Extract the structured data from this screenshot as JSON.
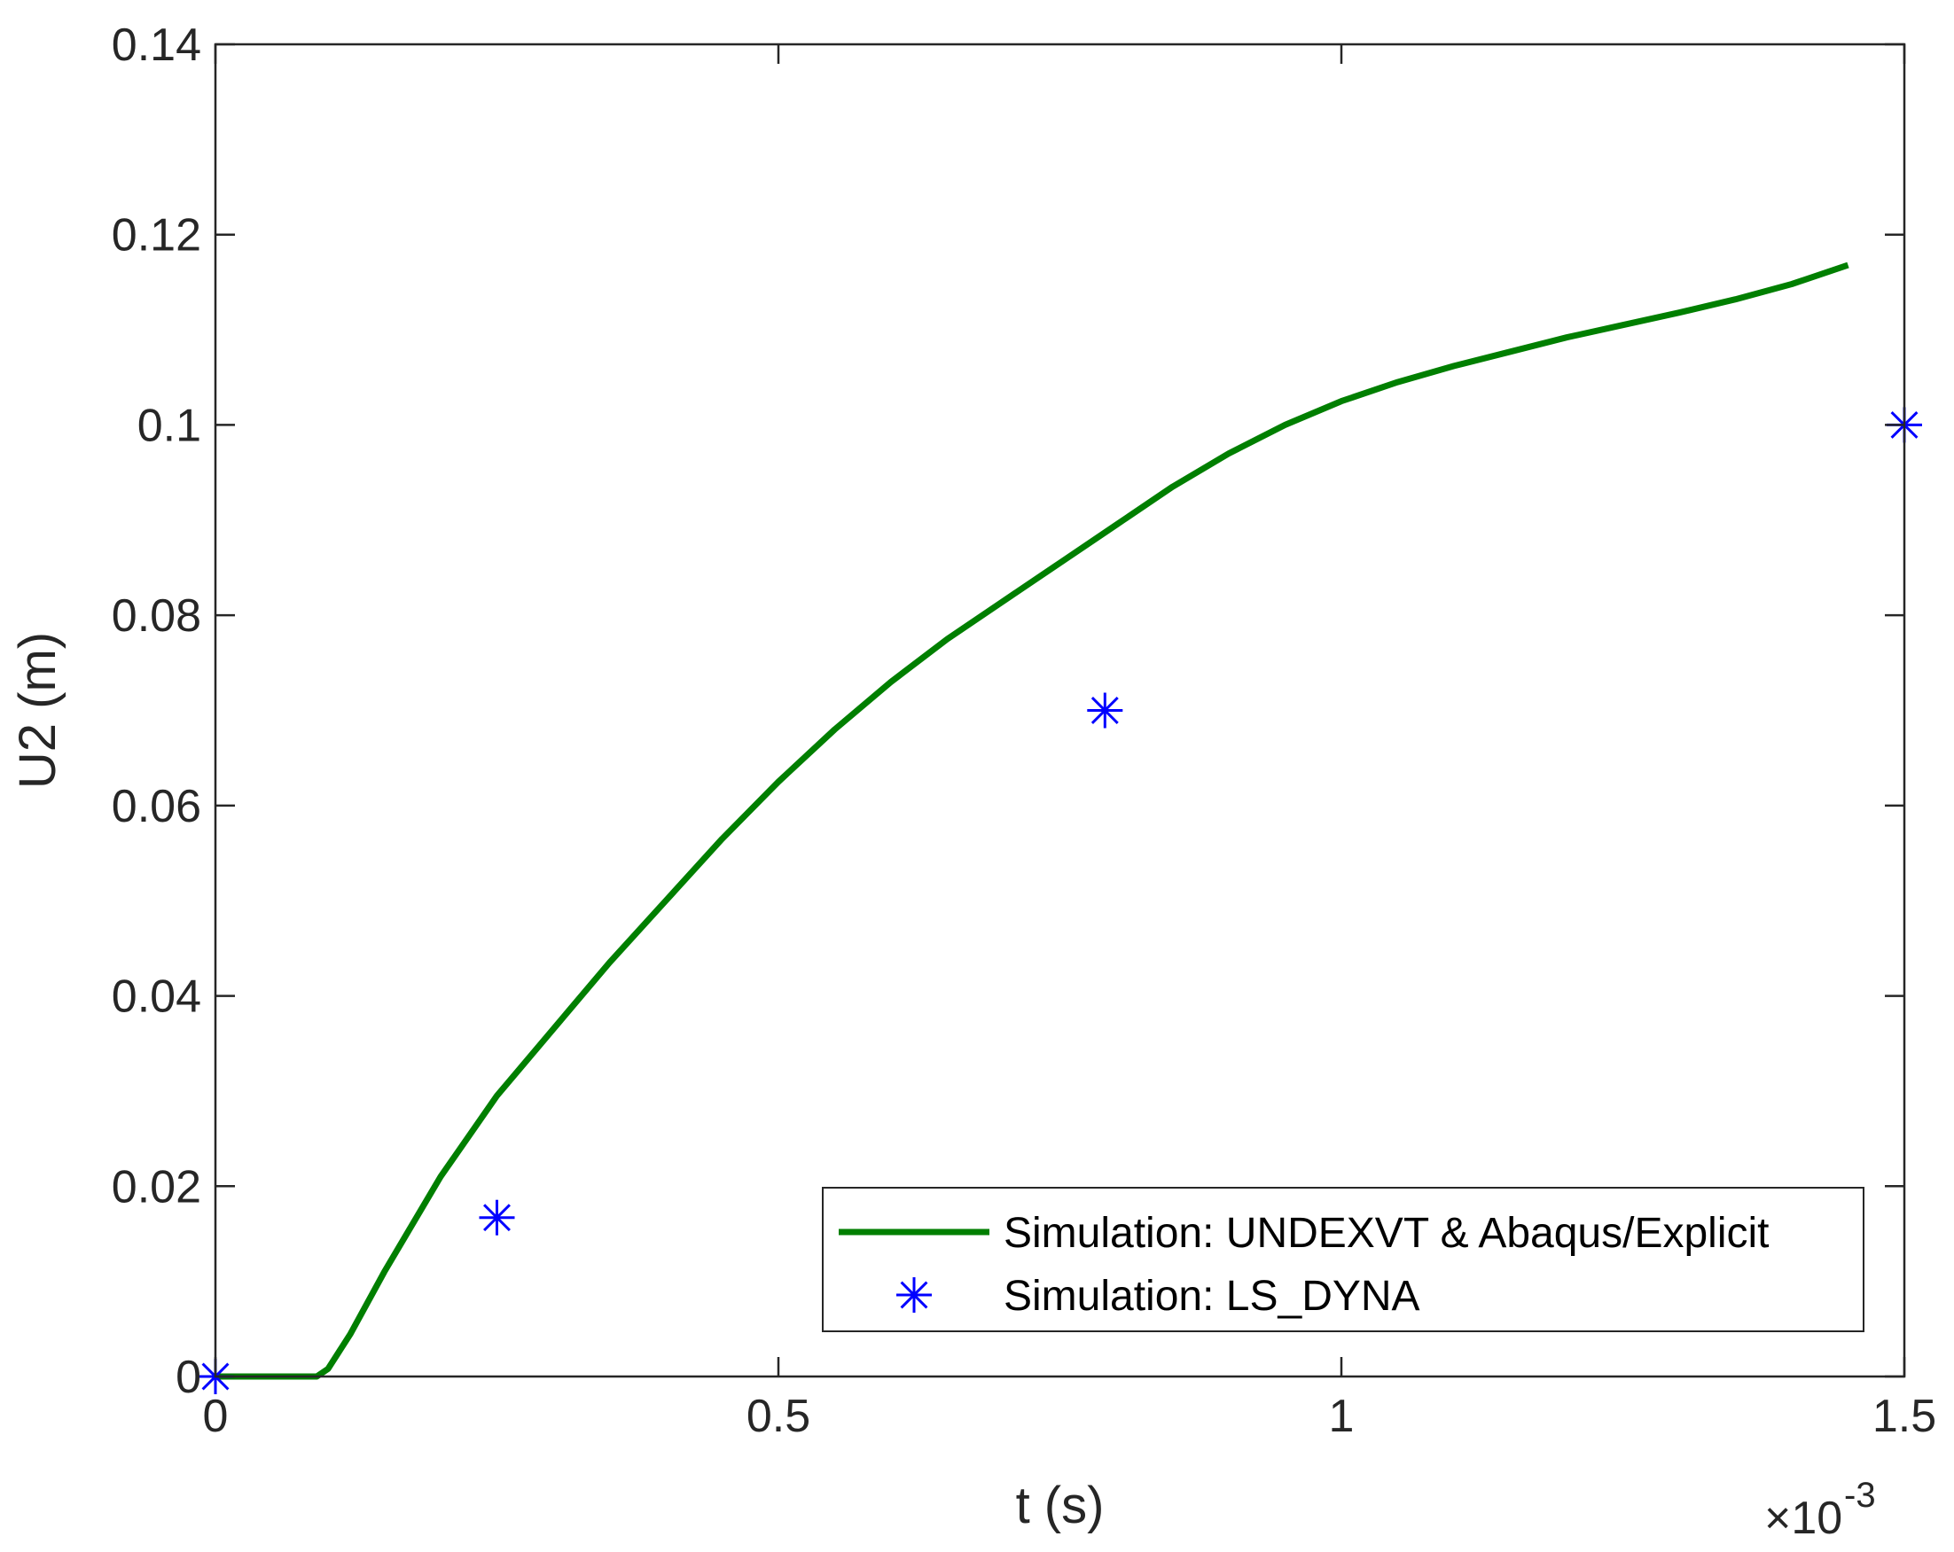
{
  "chart_data": {
    "type": "line",
    "xlabel": "t (s)",
    "ylabel": "U2 (m)",
    "x_exponent_label": "×10",
    "x_exponent_power": "-3",
    "xlim": [
      0,
      1.5
    ],
    "ylim": [
      0,
      0.14
    ],
    "x_ticks": [
      0,
      0.5,
      1,
      1.5
    ],
    "x_tick_labels": [
      "0",
      "0.5",
      "1",
      "1.5"
    ],
    "y_ticks": [
      0,
      0.02,
      0.04,
      0.06,
      0.08,
      0.1,
      0.12,
      0.14
    ],
    "y_tick_labels": [
      "0",
      "0.02",
      "0.04",
      "0.06",
      "0.08",
      "0.1",
      "0.12",
      "0.14"
    ],
    "grid": false,
    "legend_position": "bottom-right",
    "series": [
      {
        "name": "Simulation: UNDEXVT & Abaqus/Explicit",
        "style": "line",
        "color": "#007F00",
        "x": [
          0,
          0.05,
          0.09,
          0.1,
          0.12,
          0.15,
          0.2,
          0.25,
          0.3,
          0.35,
          0.4,
          0.45,
          0.5,
          0.55,
          0.6,
          0.65,
          0.7,
          0.75,
          0.8,
          0.85,
          0.9,
          0.95,
          1.0,
          1.05,
          1.1,
          1.15,
          1.2,
          1.25,
          1.3,
          1.35,
          1.4,
          1.45
        ],
        "y": [
          0,
          0,
          0,
          0.0008,
          0.0045,
          0.011,
          0.021,
          0.0295,
          0.0365,
          0.0435,
          0.05,
          0.0565,
          0.0625,
          0.068,
          0.073,
          0.0775,
          0.0815,
          0.0855,
          0.0895,
          0.0935,
          0.097,
          0.1,
          0.1025,
          0.1045,
          0.1062,
          0.1077,
          0.1092,
          0.1105,
          0.1118,
          0.1132,
          0.1148,
          0.1168
        ]
      },
      {
        "name": "Simulation: LS_DYNA",
        "style": "marker",
        "marker": "asterisk",
        "color": "#0000FF",
        "x": [
          0,
          0.25,
          0.79,
          1.5
        ],
        "y": [
          0,
          0.0167,
          0.07,
          0.1
        ]
      }
    ]
  }
}
